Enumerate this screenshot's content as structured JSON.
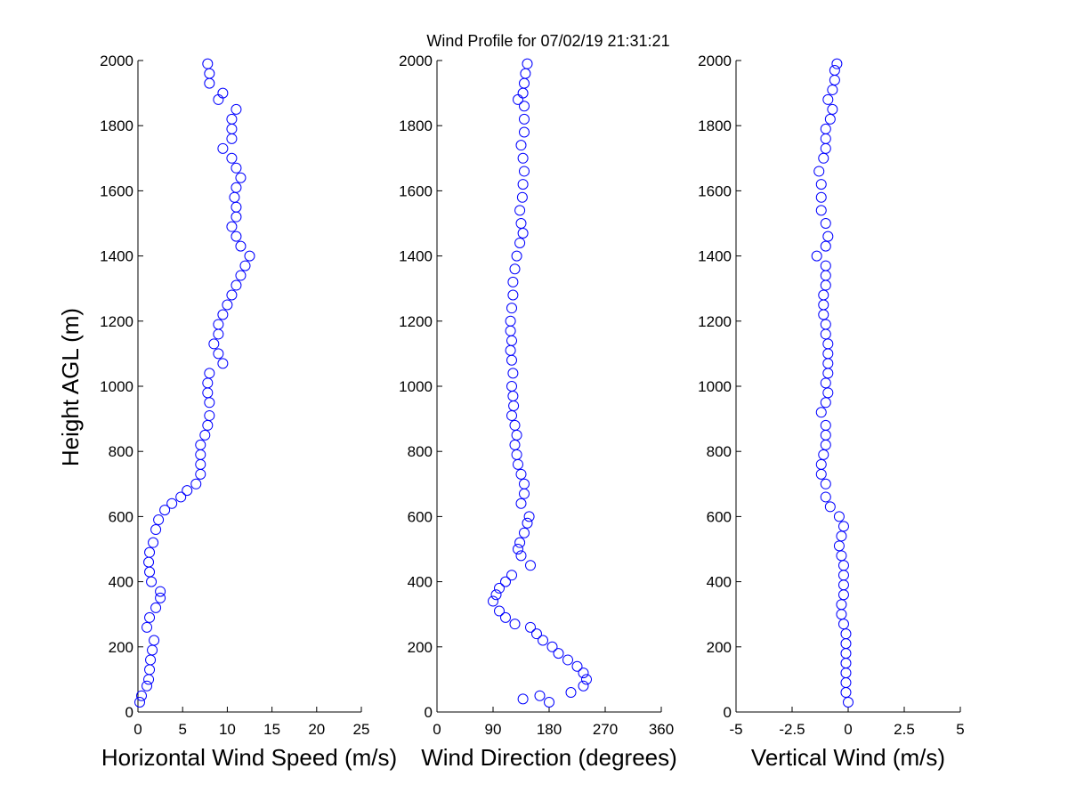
{
  "chart_data": {
    "type": "scatter",
    "title": "Wind Profile for  07/02/19 21:31:21",
    "ylabel": "Height AGL (m)",
    "ylim": [
      0,
      2000
    ],
    "yticks": [
      "0",
      "200",
      "400",
      "600",
      "800",
      "1000",
      "1200",
      "1400",
      "1600",
      "1800",
      "2000"
    ],
    "marker_color": "#0000ff",
    "panels": [
      {
        "xlabel": "Horizontal Wind Speed (m/s)",
        "xlim": [
          0,
          25
        ],
        "xticks": [
          "0",
          "5",
          "10",
          "15",
          "20",
          "25"
        ],
        "profile": [
          [
            30,
            0.2
          ],
          [
            50,
            0.4
          ],
          [
            80,
            1.0
          ],
          [
            100,
            1.2
          ],
          [
            130,
            1.3
          ],
          [
            160,
            1.4
          ],
          [
            190,
            1.6
          ],
          [
            220,
            1.8
          ],
          [
            260,
            1.0
          ],
          [
            290,
            1.3
          ],
          [
            320,
            2.0
          ],
          [
            350,
            2.5
          ],
          [
            370,
            2.5
          ],
          [
            400,
            1.5
          ],
          [
            430,
            1.3
          ],
          [
            460,
            1.2
          ],
          [
            490,
            1.3
          ],
          [
            520,
            1.7
          ],
          [
            560,
            2.0
          ],
          [
            590,
            2.3
          ],
          [
            620,
            3.0
          ],
          [
            640,
            3.8
          ],
          [
            660,
            4.8
          ],
          [
            680,
            5.5
          ],
          [
            700,
            6.5
          ],
          [
            730,
            7.0
          ],
          [
            760,
            7.0
          ],
          [
            790,
            7.0
          ],
          [
            820,
            7.0
          ],
          [
            850,
            7.5
          ],
          [
            880,
            7.8
          ],
          [
            910,
            8.0
          ],
          [
            950,
            8.0
          ],
          [
            980,
            7.8
          ],
          [
            1010,
            7.8
          ],
          [
            1040,
            8.0
          ],
          [
            1070,
            9.5
          ],
          [
            1100,
            9.0
          ],
          [
            1130,
            8.5
          ],
          [
            1160,
            9.0
          ],
          [
            1190,
            9.0
          ],
          [
            1220,
            9.5
          ],
          [
            1250,
            10.0
          ],
          [
            1280,
            10.5
          ],
          [
            1310,
            11.0
          ],
          [
            1340,
            11.5
          ],
          [
            1370,
            12.0
          ],
          [
            1400,
            12.5
          ],
          [
            1430,
            11.5
          ],
          [
            1460,
            11.0
          ],
          [
            1490,
            10.5
          ],
          [
            1520,
            11.0
          ],
          [
            1550,
            11.0
          ],
          [
            1580,
            10.8
          ],
          [
            1610,
            11.0
          ],
          [
            1640,
            11.5
          ],
          [
            1670,
            11.0
          ],
          [
            1700,
            10.5
          ],
          [
            1730,
            9.5
          ],
          [
            1760,
            10.5
          ],
          [
            1790,
            10.5
          ],
          [
            1820,
            10.5
          ],
          [
            1850,
            11.0
          ],
          [
            1880,
            9.0
          ],
          [
            1900,
            9.5
          ],
          [
            1930,
            8.0
          ],
          [
            1960,
            8.0
          ],
          [
            1990,
            7.8
          ]
        ]
      },
      {
        "xlabel": "Wind Direction (degrees)",
        "xlim": [
          0,
          360
        ],
        "xticks": [
          "0",
          "90",
          "180",
          "270",
          "360"
        ],
        "profile": [
          [
            30,
            180
          ],
          [
            40,
            138
          ],
          [
            50,
            165
          ],
          [
            60,
            215
          ],
          [
            80,
            235
          ],
          [
            100,
            240
          ],
          [
            120,
            235
          ],
          [
            140,
            225
          ],
          [
            160,
            210
          ],
          [
            180,
            195
          ],
          [
            200,
            185
          ],
          [
            220,
            170
          ],
          [
            240,
            160
          ],
          [
            260,
            150
          ],
          [
            270,
            125
          ],
          [
            290,
            110
          ],
          [
            310,
            100
          ],
          [
            340,
            90
          ],
          [
            360,
            95
          ],
          [
            380,
            100
          ],
          [
            400,
            110
          ],
          [
            420,
            120
          ],
          [
            450,
            150
          ],
          [
            480,
            135
          ],
          [
            500,
            130
          ],
          [
            520,
            133
          ],
          [
            550,
            140
          ],
          [
            580,
            145
          ],
          [
            600,
            148
          ],
          [
            640,
            135
          ],
          [
            670,
            140
          ],
          [
            700,
            140
          ],
          [
            730,
            135
          ],
          [
            760,
            130
          ],
          [
            790,
            128
          ],
          [
            820,
            125
          ],
          [
            850,
            128
          ],
          [
            880,
            125
          ],
          [
            910,
            120
          ],
          [
            940,
            123
          ],
          [
            970,
            122
          ],
          [
            1000,
            120
          ],
          [
            1040,
            122
          ],
          [
            1080,
            120
          ],
          [
            1110,
            118
          ],
          [
            1140,
            120
          ],
          [
            1170,
            118
          ],
          [
            1200,
            118
          ],
          [
            1240,
            120
          ],
          [
            1280,
            122
          ],
          [
            1320,
            122
          ],
          [
            1360,
            125
          ],
          [
            1400,
            128
          ],
          [
            1440,
            133
          ],
          [
            1470,
            138
          ],
          [
            1500,
            135
          ],
          [
            1540,
            133
          ],
          [
            1580,
            137
          ],
          [
            1620,
            138
          ],
          [
            1660,
            140
          ],
          [
            1700,
            138
          ],
          [
            1740,
            135
          ],
          [
            1780,
            140
          ],
          [
            1820,
            140
          ],
          [
            1860,
            140
          ],
          [
            1880,
            130
          ],
          [
            1900,
            138
          ],
          [
            1930,
            140
          ],
          [
            1960,
            142
          ],
          [
            1990,
            145
          ]
        ]
      },
      {
        "xlabel": "Vertical Wind (m/s)",
        "xlim": [
          -5,
          5
        ],
        "xticks": [
          "-5",
          "-2.5",
          "0",
          "2.5",
          "5"
        ],
        "profile": [
          [
            30,
            0.0
          ],
          [
            60,
            -0.1
          ],
          [
            90,
            -0.1
          ],
          [
            120,
            -0.1
          ],
          [
            150,
            -0.1
          ],
          [
            180,
            -0.1
          ],
          [
            210,
            -0.1
          ],
          [
            240,
            -0.1
          ],
          [
            270,
            -0.2
          ],
          [
            300,
            -0.3
          ],
          [
            330,
            -0.3
          ],
          [
            360,
            -0.2
          ],
          [
            390,
            -0.2
          ],
          [
            420,
            -0.2
          ],
          [
            450,
            -0.2
          ],
          [
            480,
            -0.3
          ],
          [
            510,
            -0.4
          ],
          [
            540,
            -0.3
          ],
          [
            570,
            -0.2
          ],
          [
            600,
            -0.4
          ],
          [
            630,
            -0.8
          ],
          [
            660,
            -1.0
          ],
          [
            700,
            -1.0
          ],
          [
            730,
            -1.2
          ],
          [
            760,
            -1.2
          ],
          [
            790,
            -1.1
          ],
          [
            820,
            -1.0
          ],
          [
            850,
            -1.0
          ],
          [
            880,
            -1.0
          ],
          [
            920,
            -1.2
          ],
          [
            950,
            -1.0
          ],
          [
            980,
            -0.9
          ],
          [
            1010,
            -1.0
          ],
          [
            1040,
            -0.9
          ],
          [
            1070,
            -0.9
          ],
          [
            1100,
            -0.9
          ],
          [
            1130,
            -0.9
          ],
          [
            1160,
            -1.0
          ],
          [
            1190,
            -1.0
          ],
          [
            1220,
            -1.1
          ],
          [
            1250,
            -1.1
          ],
          [
            1280,
            -1.1
          ],
          [
            1310,
            -1.0
          ],
          [
            1340,
            -1.0
          ],
          [
            1370,
            -1.0
          ],
          [
            1400,
            -1.4
          ],
          [
            1430,
            -1.0
          ],
          [
            1460,
            -0.9
          ],
          [
            1500,
            -1.0
          ],
          [
            1540,
            -1.2
          ],
          [
            1580,
            -1.2
          ],
          [
            1620,
            -1.2
          ],
          [
            1660,
            -1.3
          ],
          [
            1700,
            -1.1
          ],
          [
            1730,
            -1.0
          ],
          [
            1760,
            -1.0
          ],
          [
            1790,
            -1.0
          ],
          [
            1820,
            -0.8
          ],
          [
            1850,
            -0.7
          ],
          [
            1880,
            -0.9
          ],
          [
            1910,
            -0.7
          ],
          [
            1940,
            -0.6
          ],
          [
            1970,
            -0.6
          ],
          [
            1990,
            -0.5
          ]
        ]
      }
    ]
  }
}
